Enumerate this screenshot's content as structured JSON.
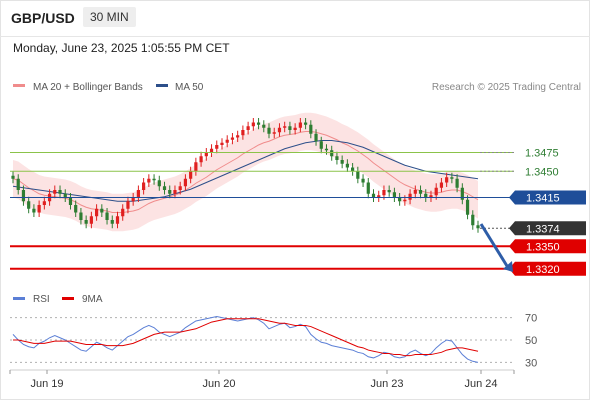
{
  "header": {
    "pair": "GBP/USD",
    "timeframe": "30 MIN"
  },
  "timestamp": "Monday, June 23, 2025 1:05:55 PM CET",
  "legend": {
    "ma20": {
      "label": "MA 20 + Bollinger Bands",
      "color": "#f08c8c"
    },
    "ma50": {
      "label": "MA 50",
      "color": "#2d4f8a"
    }
  },
  "copyright": "Research © 2025 Trading Central",
  "colors": {
    "up": "#e02020",
    "down": "#2e7d32",
    "resistance": "#8bc34a",
    "pivot": "#1f4e99",
    "support": "#e00000",
    "rsi": "#5b7fd6",
    "rsi9ma": "#e00000",
    "arrow": "#2e5da8"
  },
  "chart_data": [
    {
      "type": "candlestick",
      "x_ticks": [
        "Jun 19",
        "Jun 20",
        "Jun 23",
        "Jun 24"
      ],
      "ylim": [
        1.3305,
        1.3545
      ],
      "current_price": 1.3374,
      "levels": [
        {
          "value": 1.3475,
          "label": "1.3475",
          "kind": "resistance"
        },
        {
          "value": 1.345,
          "label": "1.3450",
          "kind": "resistance"
        },
        {
          "value": 1.3415,
          "label": "1.3415",
          "kind": "pivot"
        },
        {
          "value": 1.3374,
          "label": "1.3374",
          "kind": "current"
        },
        {
          "value": 1.335,
          "label": "1.3350",
          "kind": "support"
        },
        {
          "value": 1.332,
          "label": "1.3320",
          "kind": "support"
        }
      ],
      "close": [
        1.344,
        1.3425,
        1.341,
        1.34,
        1.3395,
        1.3405,
        1.341,
        1.342,
        1.3425,
        1.342,
        1.3415,
        1.3405,
        1.3395,
        1.3385,
        1.338,
        1.339,
        1.34,
        1.3395,
        1.3385,
        1.338,
        1.339,
        1.34,
        1.341,
        1.3415,
        1.3425,
        1.3435,
        1.344,
        1.3438,
        1.343,
        1.3425,
        1.342,
        1.3425,
        1.343,
        1.344,
        1.345,
        1.3462,
        1.347,
        1.3475,
        1.348,
        1.3485,
        1.3488,
        1.3492,
        1.3495,
        1.3498,
        1.3505,
        1.351,
        1.3515,
        1.3512,
        1.3508,
        1.35,
        1.3502,
        1.3508,
        1.351,
        1.3505,
        1.3508,
        1.3515,
        1.3512,
        1.35,
        1.349,
        1.348,
        1.3478,
        1.347,
        1.3465,
        1.346,
        1.3455,
        1.345,
        1.344,
        1.3435,
        1.342,
        1.3415,
        1.3418,
        1.3425,
        1.3422,
        1.3415,
        1.341,
        1.3412,
        1.342,
        1.3425,
        1.342,
        1.3415,
        1.3418,
        1.3428,
        1.3435,
        1.3442,
        1.344,
        1.3428,
        1.3412,
        1.3392,
        1.3378,
        1.3374
      ],
      "ma20": [
        1.344,
        1.3438,
        1.3433,
        1.3428,
        1.3424,
        1.342,
        1.3418,
        1.3417,
        1.3416,
        1.3415,
        1.3414,
        1.3412,
        1.3409,
        1.3405,
        1.3402,
        1.34,
        1.3399,
        1.3398,
        1.3397,
        1.3395,
        1.3395,
        1.3395,
        1.3396,
        1.3397,
        1.3399,
        1.3403,
        1.3407,
        1.341,
        1.3412,
        1.3414,
        1.3416,
        1.3418,
        1.3421,
        1.3425,
        1.3429,
        1.3434,
        1.3438,
        1.3442,
        1.3447,
        1.3452,
        1.3456,
        1.346,
        1.3464,
        1.3468,
        1.3473,
        1.3477,
        1.3481,
        1.3485,
        1.3488,
        1.349,
        1.3493,
        1.3496,
        1.3498,
        1.3499,
        1.35,
        1.3502,
        1.3503,
        1.3503,
        1.3502,
        1.35,
        1.3498,
        1.3495,
        1.3492,
        1.3488,
        1.3485,
        1.3481,
        1.3477,
        1.3472,
        1.3467,
        1.3461,
        1.3456,
        1.3451,
        1.3446,
        1.3441,
        1.3436,
        1.3432,
        1.3429,
        1.3426,
        1.3424,
        1.3422,
        1.3421,
        1.3421,
        1.3422,
        1.3424,
        1.3425,
        1.3425,
        1.3423,
        1.342,
        1.3416,
        1.3412
      ],
      "ma50": [
        1.343,
        1.3429,
        1.3428,
        1.3427,
        1.3426,
        1.3425,
        1.3424,
        1.3423,
        1.3422,
        1.3421,
        1.342,
        1.3419,
        1.3418,
        1.3417,
        1.3416,
        1.3415,
        1.3414,
        1.3413,
        1.3412,
        1.3411,
        1.341,
        1.341,
        1.341,
        1.341,
        1.3411,
        1.3412,
        1.3413,
        1.3414,
        1.3415,
        1.3416,
        1.3418,
        1.342,
        1.3422,
        1.3424,
        1.3426,
        1.3429,
        1.3432,
        1.3435,
        1.3438,
        1.3441,
        1.3444,
        1.3447,
        1.345,
        1.3453,
        1.3456,
        1.3459,
        1.3462,
        1.3465,
        1.3468,
        1.3471,
        1.3474,
        1.3477,
        1.348,
        1.3482,
        1.3484,
        1.3486,
        1.3488,
        1.3489,
        1.349,
        1.3491,
        1.3491,
        1.3491,
        1.349,
        1.3489,
        1.3488,
        1.3486,
        1.3484,
        1.3482,
        1.3479,
        1.3476,
        1.3473,
        1.347,
        1.3467,
        1.3464,
        1.3461,
        1.3458,
        1.3456,
        1.3454,
        1.3452,
        1.345,
        1.3449,
        1.3448,
        1.3447,
        1.3446,
        1.3445,
        1.3444,
        1.3443,
        1.3442,
        1.3441,
        1.344
      ],
      "bollinger_width": 0.0025
    },
    {
      "type": "line",
      "series": [
        {
          "name": "RSI"
        },
        {
          "name": "9MA"
        }
      ],
      "ylim": [
        25,
        75
      ],
      "y_ticks": [
        70,
        50,
        30
      ],
      "rsi": [
        55,
        50,
        46,
        44,
        43,
        47,
        49,
        52,
        54,
        52,
        50,
        47,
        44,
        41,
        40,
        44,
        48,
        46,
        43,
        41,
        45,
        49,
        53,
        55,
        58,
        61,
        63,
        61,
        57,
        55,
        53,
        55,
        57,
        61,
        64,
        67,
        68,
        69,
        70,
        71,
        70,
        69,
        68,
        67,
        68,
        69,
        70,
        68,
        65,
        60,
        62,
        64,
        65,
        61,
        62,
        64,
        62,
        55,
        51,
        48,
        47,
        45,
        44,
        43,
        42,
        41,
        39,
        38,
        35,
        34,
        36,
        39,
        38,
        35,
        34,
        35,
        39,
        41,
        38,
        36,
        38,
        43,
        47,
        50,
        49,
        43,
        37,
        33,
        31,
        30
      ],
      "rsi_ma9": [
        50,
        50,
        49,
        48,
        47,
        47,
        47,
        48,
        49,
        49,
        49,
        49,
        48,
        47,
        46,
        46,
        46,
        46,
        45,
        45,
        45,
        45,
        46,
        47,
        49,
        51,
        53,
        55,
        56,
        57,
        57,
        57,
        57,
        58,
        59,
        60,
        62,
        64,
        66,
        67,
        68,
        69,
        69,
        69,
        69,
        69,
        69,
        69,
        68,
        67,
        66,
        65,
        65,
        64,
        63,
        63,
        63,
        62,
        60,
        58,
        56,
        54,
        52,
        50,
        48,
        46,
        44,
        43,
        41,
        40,
        39,
        38,
        38,
        37,
        37,
        36,
        36,
        37,
        37,
        37,
        37,
        38,
        39,
        41,
        42,
        43,
        43,
        42,
        41,
        40
      ]
    }
  ]
}
